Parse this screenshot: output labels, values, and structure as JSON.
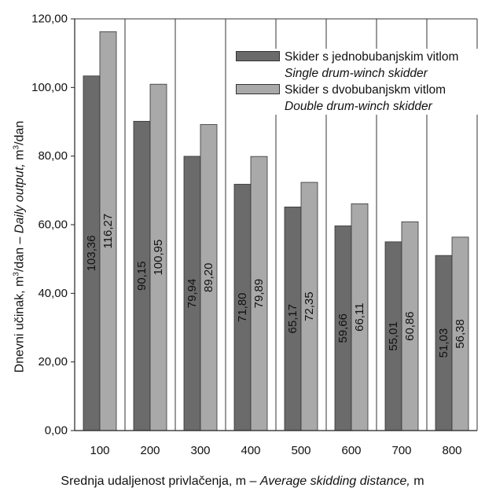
{
  "chart_data": {
    "type": "bar",
    "categories": [
      "100",
      "200",
      "300",
      "400",
      "500",
      "600",
      "700",
      "800"
    ],
    "series": [
      {
        "name": "Skider s jednobubanjskim vitlom",
        "name_en": "Single drum-winch skidder",
        "color": "#6b6b6b",
        "values": [
          103.36,
          90.15,
          79.94,
          71.8,
          65.17,
          59.66,
          55.01,
          51.03
        ],
        "labels": [
          "103,36",
          "90,15",
          "79,94",
          "71,80",
          "65,17",
          "59,66",
          "55,01",
          "51,03"
        ]
      },
      {
        "name": "Skider s dvobubanjskm vitlom",
        "name_en": "Double drum-winch skidder",
        "color": "#a9a9a9",
        "values": [
          116.27,
          100.95,
          89.2,
          79.89,
          72.35,
          66.11,
          60.86,
          56.38
        ],
        "labels": [
          "116,27",
          "100,95",
          "89,20",
          "79,89",
          "72,35",
          "66,11",
          "60,86",
          "56,38"
        ]
      }
    ],
    "xlabel": {
      "local": "Srednja udaljenost privlačenja, m – ",
      "en": "Average skidding distance,",
      "unit": " m"
    },
    "ylabel": {
      "local_a": "Dnevni učinak, m",
      "local_b": "/dan – ",
      "en": "Daily output,",
      "unit_a": " m",
      "unit_b": "/dan",
      "sup": "3"
    },
    "ylim": [
      0,
      120
    ],
    "yticks": [
      "0,00",
      "20,00",
      "40,00",
      "60,00",
      "80,00",
      "100,00",
      "120,00"
    ],
    "ytick_values": [
      0,
      20,
      40,
      60,
      80,
      100,
      120
    ],
    "grid": "vertical",
    "legend_position": "top-right"
  }
}
